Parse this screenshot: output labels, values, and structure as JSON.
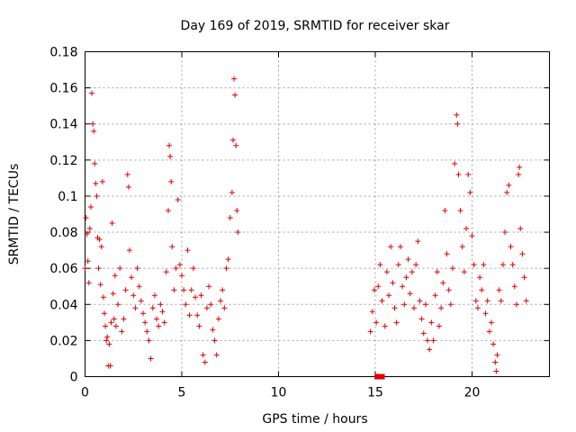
{
  "chart_data": {
    "type": "scatter",
    "title": "Day 169 of 2019, SRMTID for receiver skar",
    "xlabel": "GPS time / hours",
    "ylabel": "SRMTID / TECUs",
    "xlim": [
      0,
      24
    ],
    "ylim": [
      0,
      0.18
    ],
    "xticks": [
      0,
      5,
      10,
      15,
      20
    ],
    "xtick_labels": [
      "0",
      "5",
      "10",
      "15",
      "20"
    ],
    "yticks": [
      0,
      0.02,
      0.04,
      0.06,
      0.08,
      0.1,
      0.12,
      0.14,
      0.16,
      0.18
    ],
    "ytick_labels": [
      "0",
      "0.02",
      "0.04",
      "0.06",
      "0.08",
      "0.1",
      "0.12",
      "0.14",
      "0.16",
      "0.18"
    ],
    "grid": true,
    "marker": "plus",
    "color": "#e00000",
    "series": [
      {
        "name": "SRMTID",
        "points": [
          [
            0.0,
            0.06
          ],
          [
            0.05,
            0.088
          ],
          [
            0.1,
            0.079
          ],
          [
            0.15,
            0.064
          ],
          [
            0.2,
            0.052
          ],
          [
            0.25,
            0.082
          ],
          [
            0.3,
            0.094
          ],
          [
            0.35,
            0.157
          ],
          [
            0.4,
            0.14
          ],
          [
            0.45,
            0.136
          ],
          [
            0.5,
            0.118
          ],
          [
            0.55,
            0.107
          ],
          [
            0.6,
            0.1
          ],
          [
            0.65,
            0.077
          ],
          [
            0.7,
            0.06
          ],
          [
            0.75,
            0.076
          ],
          [
            0.8,
            0.051
          ],
          [
            0.85,
            0.072
          ],
          [
            0.9,
            0.108
          ],
          [
            0.95,
            0.044
          ],
          [
            1.0,
            0.035
          ],
          [
            1.05,
            0.028
          ],
          [
            1.1,
            0.02
          ],
          [
            1.15,
            0.022
          ],
          [
            1.2,
            0.006
          ],
          [
            1.25,
            0.018
          ],
          [
            1.3,
            0.006
          ],
          [
            1.35,
            0.03
          ],
          [
            1.4,
            0.085
          ],
          [
            1.45,
            0.046
          ],
          [
            1.5,
            0.032
          ],
          [
            1.55,
            0.056
          ],
          [
            1.6,
            0.028
          ],
          [
            1.7,
            0.04
          ],
          [
            1.8,
            0.06
          ],
          [
            1.9,
            0.025
          ],
          [
            2.0,
            0.032
          ],
          [
            2.1,
            0.048
          ],
          [
            2.2,
            0.112
          ],
          [
            2.25,
            0.105
          ],
          [
            2.3,
            0.07
          ],
          [
            2.4,
            0.055
          ],
          [
            2.5,
            0.045
          ],
          [
            2.6,
            0.038
          ],
          [
            2.7,
            0.06
          ],
          [
            2.8,
            0.05
          ],
          [
            2.9,
            0.042
          ],
          [
            3.0,
            0.035
          ],
          [
            3.1,
            0.03
          ],
          [
            3.2,
            0.025
          ],
          [
            3.3,
            0.02
          ],
          [
            3.4,
            0.01
          ],
          [
            3.5,
            0.038
          ],
          [
            3.6,
            0.045
          ],
          [
            3.7,
            0.032
          ],
          [
            3.8,
            0.028
          ],
          [
            3.9,
            0.04
          ],
          [
            4.0,
            0.036
          ],
          [
            4.1,
            0.03
          ],
          [
            4.2,
            0.058
          ],
          [
            4.3,
            0.092
          ],
          [
            4.35,
            0.128
          ],
          [
            4.4,
            0.122
          ],
          [
            4.45,
            0.108
          ],
          [
            4.5,
            0.072
          ],
          [
            4.6,
            0.048
          ],
          [
            4.7,
            0.06
          ],
          [
            4.8,
            0.098
          ],
          [
            4.9,
            0.062
          ],
          [
            5.0,
            0.056
          ],
          [
            5.1,
            0.048
          ],
          [
            5.2,
            0.04
          ],
          [
            5.3,
            0.07
          ],
          [
            5.4,
            0.034
          ],
          [
            5.5,
            0.048
          ],
          [
            5.6,
            0.06
          ],
          [
            5.7,
            0.044
          ],
          [
            5.8,
            0.034
          ],
          [
            5.9,
            0.028
          ],
          [
            6.0,
            0.045
          ],
          [
            6.1,
            0.012
          ],
          [
            6.2,
            0.008
          ],
          [
            6.3,
            0.038
          ],
          [
            6.4,
            0.05
          ],
          [
            6.5,
            0.04
          ],
          [
            6.6,
            0.026
          ],
          [
            6.7,
            0.02
          ],
          [
            6.8,
            0.012
          ],
          [
            6.9,
            0.032
          ],
          [
            7.0,
            0.042
          ],
          [
            7.1,
            0.048
          ],
          [
            7.2,
            0.038
          ],
          [
            7.3,
            0.06
          ],
          [
            7.4,
            0.065
          ],
          [
            7.5,
            0.088
          ],
          [
            7.6,
            0.102
          ],
          [
            7.65,
            0.131
          ],
          [
            7.7,
            0.165
          ],
          [
            7.75,
            0.156
          ],
          [
            7.8,
            0.128
          ],
          [
            7.85,
            0.092
          ],
          [
            7.9,
            0.08
          ],
          [
            14.75,
            0.025
          ],
          [
            14.85,
            0.036
          ],
          [
            14.95,
            0.048
          ],
          [
            15.05,
            0.03
          ],
          [
            15.15,
            0.05
          ],
          [
            15.25,
            0.062
          ],
          [
            15.35,
            0.042
          ],
          [
            15.5,
            0.028
          ],
          [
            15.6,
            0.058
          ],
          [
            15.7,
            0.045
          ],
          [
            15.8,
            0.072
          ],
          [
            15.9,
            0.052
          ],
          [
            16.0,
            0.038
          ],
          [
            16.1,
            0.03
          ],
          [
            16.2,
            0.062
          ],
          [
            16.3,
            0.072
          ],
          [
            16.4,
            0.05
          ],
          [
            16.5,
            0.04
          ],
          [
            16.6,
            0.055
          ],
          [
            16.7,
            0.065
          ],
          [
            16.8,
            0.046
          ],
          [
            16.9,
            0.058
          ],
          [
            17.0,
            0.038
          ],
          [
            17.1,
            0.062
          ],
          [
            17.2,
            0.075
          ],
          [
            17.3,
            0.042
          ],
          [
            17.4,
            0.032
          ],
          [
            17.5,
            0.024
          ],
          [
            17.6,
            0.04
          ],
          [
            17.7,
            0.02
          ],
          [
            17.8,
            0.015
          ],
          [
            17.9,
            0.03
          ],
          [
            18.0,
            0.02
          ],
          [
            18.1,
            0.045
          ],
          [
            18.2,
            0.058
          ],
          [
            18.3,
            0.028
          ],
          [
            18.4,
            0.038
          ],
          [
            18.5,
            0.052
          ],
          [
            18.6,
            0.092
          ],
          [
            18.7,
            0.068
          ],
          [
            18.8,
            0.048
          ],
          [
            18.9,
            0.04
          ],
          [
            19.0,
            0.06
          ],
          [
            19.1,
            0.118
          ],
          [
            19.2,
            0.145
          ],
          [
            19.25,
            0.14
          ],
          [
            19.3,
            0.112
          ],
          [
            19.4,
            0.092
          ],
          [
            19.5,
            0.072
          ],
          [
            19.6,
            0.058
          ],
          [
            19.7,
            0.082
          ],
          [
            19.8,
            0.112
          ],
          [
            19.9,
            0.102
          ],
          [
            20.0,
            0.078
          ],
          [
            20.1,
            0.062
          ],
          [
            20.2,
            0.042
          ],
          [
            20.3,
            0.038
          ],
          [
            20.4,
            0.055
          ],
          [
            20.5,
            0.048
          ],
          [
            20.6,
            0.062
          ],
          [
            20.7,
            0.035
          ],
          [
            20.8,
            0.042
          ],
          [
            20.9,
            0.025
          ],
          [
            21.0,
            0.03
          ],
          [
            21.1,
            0.018
          ],
          [
            21.2,
            0.008
          ],
          [
            21.25,
            0.003
          ],
          [
            21.3,
            0.012
          ],
          [
            21.4,
            0.048
          ],
          [
            21.5,
            0.042
          ],
          [
            21.6,
            0.062
          ],
          [
            21.7,
            0.08
          ],
          [
            21.8,
            0.102
          ],
          [
            21.9,
            0.106
          ],
          [
            22.0,
            0.072
          ],
          [
            22.1,
            0.062
          ],
          [
            22.2,
            0.05
          ],
          [
            22.3,
            0.04
          ],
          [
            22.4,
            0.112
          ],
          [
            22.45,
            0.116
          ],
          [
            22.5,
            0.082
          ],
          [
            22.6,
            0.068
          ],
          [
            22.7,
            0.055
          ],
          [
            22.8,
            0.042
          ]
        ]
      }
    ],
    "zero_markers": [
      [
        15.1,
        0.0
      ],
      [
        15.35,
        0.0
      ]
    ]
  }
}
